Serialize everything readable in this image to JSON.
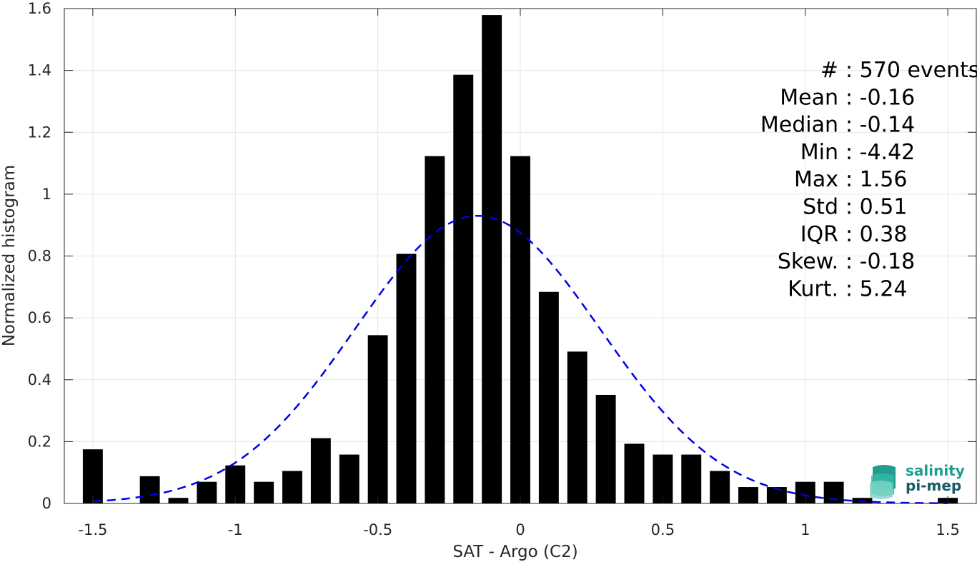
{
  "chart_data": {
    "type": "bar",
    "xlabel": "SAT - Argo (C2)",
    "ylabel": "Normalized histogram",
    "xlim": [
      -1.6,
      1.6
    ],
    "ylim": [
      0,
      1.6
    ],
    "grid": true,
    "x_ticks": [
      {
        "value": -1.5,
        "label": "-1.5"
      },
      {
        "value": -1,
        "label": "-1"
      },
      {
        "value": -0.5,
        "label": "-0.5"
      },
      {
        "value": 0,
        "label": "0"
      },
      {
        "value": 0.5,
        "label": "0.5"
      },
      {
        "value": 1,
        "label": "1"
      },
      {
        "value": 1.5,
        "label": "1.5"
      }
    ],
    "y_ticks": [
      {
        "value": 0,
        "label": "0"
      },
      {
        "value": 0.2,
        "label": "0.2"
      },
      {
        "value": 0.4,
        "label": "0.4"
      },
      {
        "value": 0.6,
        "label": "0.6"
      },
      {
        "value": 0.8,
        "label": "0.8"
      },
      {
        "value": 1,
        "label": "1"
      },
      {
        "value": 1.2,
        "label": "1.2"
      },
      {
        "value": 1.4,
        "label": "1.4"
      },
      {
        "value": 1.6,
        "label": "1.6"
      }
    ],
    "bar_width": 0.07,
    "bar_color": "#000000",
    "bars": [
      {
        "x": -1.5,
        "y": 0.175
      },
      {
        "x": -1.4,
        "y": 0.0
      },
      {
        "x": -1.3,
        "y": 0.088
      },
      {
        "x": -1.2,
        "y": 0.018
      },
      {
        "x": -1.1,
        "y": 0.07
      },
      {
        "x": -1.0,
        "y": 0.123
      },
      {
        "x": -0.9,
        "y": 0.07
      },
      {
        "x": -0.8,
        "y": 0.105
      },
      {
        "x": -0.7,
        "y": 0.211
      },
      {
        "x": -0.6,
        "y": 0.158
      },
      {
        "x": -0.5,
        "y": 0.544
      },
      {
        "x": -0.4,
        "y": 0.807
      },
      {
        "x": -0.3,
        "y": 1.123
      },
      {
        "x": -0.2,
        "y": 1.386
      },
      {
        "x": -0.1,
        "y": 1.579
      },
      {
        "x": 0.0,
        "y": 1.123
      },
      {
        "x": 0.1,
        "y": 0.684
      },
      {
        "x": 0.2,
        "y": 0.491
      },
      {
        "x": 0.3,
        "y": 0.351
      },
      {
        "x": 0.4,
        "y": 0.193
      },
      {
        "x": 0.5,
        "y": 0.158
      },
      {
        "x": 0.6,
        "y": 0.158
      },
      {
        "x": 0.7,
        "y": 0.105
      },
      {
        "x": 0.8,
        "y": 0.053
      },
      {
        "x": 0.9,
        "y": 0.053
      },
      {
        "x": 1.0,
        "y": 0.07
      },
      {
        "x": 1.1,
        "y": 0.07
      },
      {
        "x": 1.2,
        "y": 0.018
      },
      {
        "x": 1.3,
        "y": 0.0
      },
      {
        "x": 1.4,
        "y": 0.0
      },
      {
        "x": 1.5,
        "y": 0.018
      }
    ],
    "fit_curve": {
      "style": "dashed",
      "color": "#0000e6",
      "mean": -0.15,
      "std": 0.43,
      "peak": 0.93,
      "x_range": [
        -1.5,
        1.5
      ]
    },
    "stats": [
      {
        "name": "#  ",
        "value": ": 570 events"
      },
      {
        "name": "Mean",
        "value": ": -0.16"
      },
      {
        "name": "Median",
        "value": ": -0.14"
      },
      {
        "name": "Min",
        "value": ": -4.42"
      },
      {
        "name": "Max",
        "value": ": 1.56"
      },
      {
        "name": "Std",
        "value": ": 0.51"
      },
      {
        "name": "IQR",
        "value": ": 0.38"
      },
      {
        "name": "Skew.",
        "value": ": -0.18"
      },
      {
        "name": "Kurt.",
        "value": ": 5.24"
      }
    ]
  },
  "logo": {
    "line1": "salinity",
    "line2": "pi-mep",
    "color_primary": "#1f9e8f",
    "color_dark": "#145c66"
  }
}
